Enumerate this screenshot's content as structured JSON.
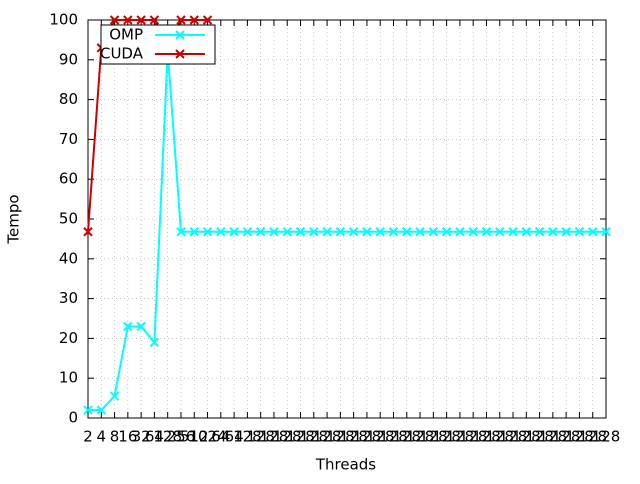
{
  "chart_data": {
    "type": "line",
    "xlabel": "Threads",
    "ylabel": "Tempo",
    "categories": [
      "2",
      "4",
      "8",
      "16",
      "32",
      "64",
      "128",
      "256",
      "512",
      "1024",
      "64",
      "64",
      "128",
      "128",
      "128",
      "128",
      "128",
      "128",
      "128",
      "128",
      "128",
      "128",
      "128",
      "128",
      "128",
      "128",
      "128",
      "128",
      "128",
      "128",
      "128",
      "128",
      "128",
      "128",
      "128",
      "128",
      "128",
      "128",
      "128",
      "128"
    ],
    "series": [
      {
        "name": "OMP",
        "color": "#00ffff",
        "values": [
          2,
          2,
          5.5,
          23,
          23,
          19,
          92,
          46.8,
          46.8,
          46.8,
          46.8,
          46.8,
          46.8,
          46.8,
          46.8,
          46.8,
          46.8,
          46.8,
          46.8,
          46.8,
          46.8,
          46.8,
          46.8,
          46.8,
          46.8,
          46.8,
          46.8,
          46.8,
          46.8,
          46.8,
          46.8,
          46.8,
          46.8,
          46.8,
          46.8,
          46.8,
          46.8,
          46.8,
          46.8,
          46.8
        ]
      },
      {
        "name": "CUDA",
        "color": "#cc0000",
        "values": [
          46.8,
          93,
          100,
          100,
          100,
          100,
          93,
          100,
          100,
          100,
          null,
          null,
          null,
          null,
          null,
          null,
          null,
          null,
          null,
          null,
          null,
          null,
          null,
          null,
          null,
          null,
          null,
          null,
          null,
          null,
          null,
          null,
          null,
          null,
          null,
          null,
          null,
          null,
          null,
          null
        ]
      }
    ],
    "ylim": [
      0,
      100
    ],
    "yticks": [
      0,
      10,
      20,
      30,
      40,
      50,
      60,
      70,
      80,
      90,
      100
    ],
    "grid": true,
    "legend": "top-left"
  }
}
